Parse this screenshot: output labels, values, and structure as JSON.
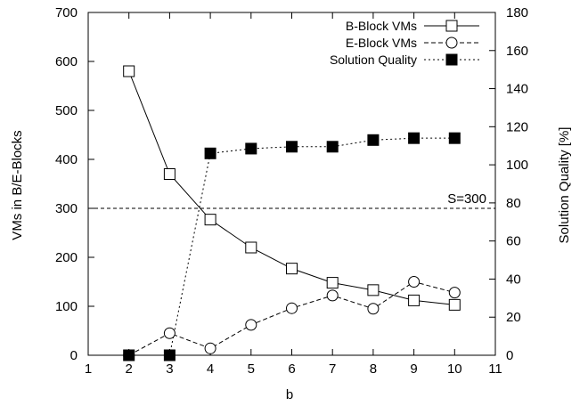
{
  "chart_data": {
    "type": "line",
    "title": "",
    "xlabel": "b",
    "ylabel": "VMs in B/E-Blocks",
    "y2label": "Solution Quality [%]",
    "xlim": [
      1,
      11
    ],
    "ylim": [
      0,
      700
    ],
    "y2lim": [
      0,
      180
    ],
    "xticks": [
      1,
      2,
      3,
      4,
      5,
      6,
      7,
      8,
      9,
      10,
      11
    ],
    "yticks": [
      0,
      100,
      200,
      300,
      400,
      500,
      600,
      700
    ],
    "y2ticks": [
      0,
      20,
      40,
      60,
      80,
      100,
      120,
      140,
      160,
      180
    ],
    "grid": false,
    "legend_position": "top-right",
    "threshold": {
      "y": 300,
      "label": "S=300"
    },
    "series": [
      {
        "name": "B-Block VMs",
        "axis": "left",
        "marker": "open-square",
        "line": "solid",
        "x": [
          2,
          3,
          4,
          5,
          6,
          7,
          8,
          9,
          10
        ],
        "values": [
          580,
          370,
          277,
          220,
          177,
          148,
          133,
          112,
          103
        ]
      },
      {
        "name": "E-Block VMs",
        "axis": "left",
        "marker": "open-circle",
        "line": "dashed",
        "x": [
          2,
          3,
          4,
          5,
          6,
          7,
          8,
          9,
          10
        ],
        "values": [
          0,
          45,
          14,
          62,
          96,
          122,
          95,
          150,
          128
        ]
      },
      {
        "name": "Solution Quality",
        "axis": "right",
        "marker": "filled-square",
        "line": "dotted",
        "x": [
          2,
          3,
          4,
          5,
          6,
          7,
          8,
          9,
          10
        ],
        "values": [
          0,
          0,
          106,
          108.5,
          109.5,
          109.5,
          113,
          114,
          114
        ]
      }
    ]
  }
}
